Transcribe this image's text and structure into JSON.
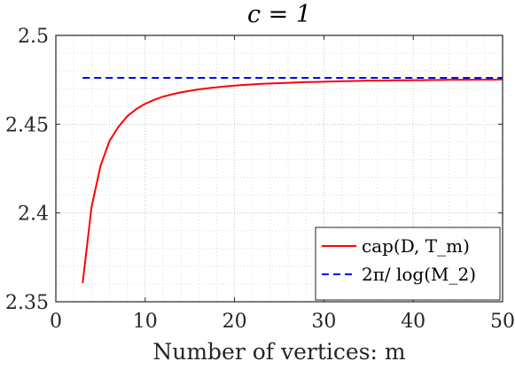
{
  "chart_data": {
    "type": "line",
    "title": "c = 1",
    "xlabel": "Number of vertices: m",
    "ylabel": "",
    "xlim": [
      0,
      50
    ],
    "ylim": [
      2.35,
      2.5
    ],
    "grid": true,
    "minor_grid": true,
    "legend_position": "bottom-right",
    "x_ticks": [
      {
        "value": 0,
        "label": "0"
      },
      {
        "value": 10,
        "label": "10"
      },
      {
        "value": 20,
        "label": "20"
      },
      {
        "value": 30,
        "label": "30"
      },
      {
        "value": 40,
        "label": "40"
      },
      {
        "value": 50,
        "label": "50"
      }
    ],
    "y_ticks": [
      {
        "value": 2.35,
        "label": "2.35"
      },
      {
        "value": 2.4,
        "label": "2.4"
      },
      {
        "value": 2.45,
        "label": "2.45"
      },
      {
        "value": 2.5,
        "label": "2.5"
      }
    ],
    "series": [
      {
        "name": "cap(D, T_m)",
        "legend_label": "cap(D, T_m)",
        "color": "#ff0000",
        "style": "solid",
        "x": [
          3,
          4,
          5,
          6,
          7,
          8,
          9,
          10,
          11,
          12,
          13,
          14,
          15,
          16,
          17,
          18,
          19,
          20,
          21,
          22,
          23,
          24,
          25,
          26,
          27,
          28,
          29,
          30,
          31,
          32,
          33,
          34,
          35,
          36,
          37,
          38,
          39,
          40,
          41,
          42,
          43,
          44,
          45,
          46,
          47,
          48,
          49,
          50
        ],
        "y": [
          2.3605,
          2.4035,
          2.4265,
          2.4405,
          2.4485,
          2.4545,
          2.4585,
          2.4615,
          2.4637,
          2.4655,
          2.4668,
          2.4679,
          2.4688,
          2.4696,
          2.4702,
          2.4708,
          2.4713,
          2.4717,
          2.4721,
          2.4724,
          2.4727,
          2.4729,
          2.4731,
          2.4733,
          2.4735,
          2.4737,
          2.4738,
          2.4739,
          2.4741,
          2.4742,
          2.4743,
          2.4744,
          2.4745,
          2.4745,
          2.4746,
          2.4747,
          2.4747,
          2.4748,
          2.4748,
          2.4749,
          2.4749,
          2.475,
          2.475,
          2.475,
          2.4751,
          2.4751,
          2.4751,
          2.4752
        ]
      },
      {
        "name": "2π/ log(M_2)",
        "legend_label": "2π/ log(M_2)",
        "color": "#0000ff",
        "style": "dashed",
        "x": [
          3,
          50
        ],
        "y": [
          2.4761,
          2.4761
        ]
      }
    ]
  }
}
